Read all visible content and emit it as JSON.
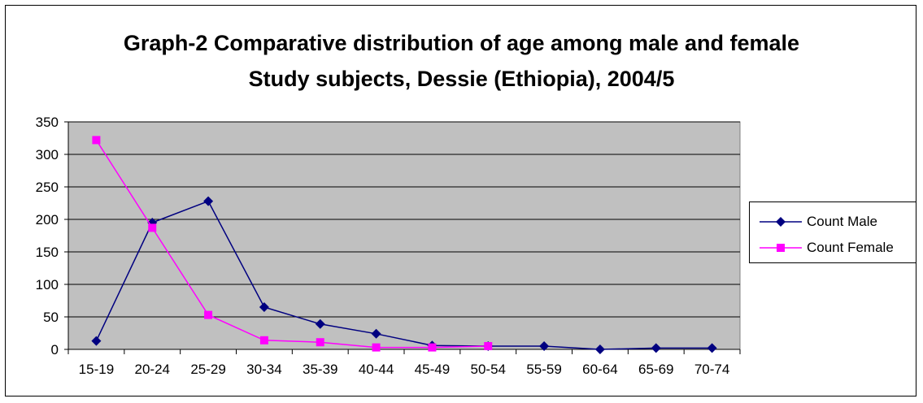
{
  "chart_data": {
    "type": "line",
    "title_lines": [
      "Graph-2 Comparative distribution of age among male and female",
      "Study subjects, Dessie (Ethiopia), 2004/5"
    ],
    "xlabel": "",
    "ylabel": "",
    "categories": [
      "15-19",
      "20-24",
      "25-29",
      "30-34",
      "35-39",
      "40-44",
      "45-49",
      "50-54",
      "55-59",
      "60-64",
      "65-69",
      "70-74"
    ],
    "ylim": [
      0,
      350
    ],
    "yticks": [
      0,
      50,
      100,
      150,
      200,
      250,
      300,
      350
    ],
    "grid": true,
    "legend_position": "right",
    "plot_background": "#C0C0C0",
    "series": [
      {
        "name": "Count Male",
        "color": "#000080",
        "marker": "diamond",
        "values": [
          13,
          195,
          228,
          65,
          39,
          24,
          6,
          5,
          5,
          0,
          2,
          2
        ]
      },
      {
        "name": "Count Female",
        "color": "#FF00FF",
        "marker": "square",
        "values": [
          322,
          187,
          53,
          14,
          11,
          3,
          3,
          5,
          null,
          null,
          null,
          null
        ]
      }
    ]
  }
}
